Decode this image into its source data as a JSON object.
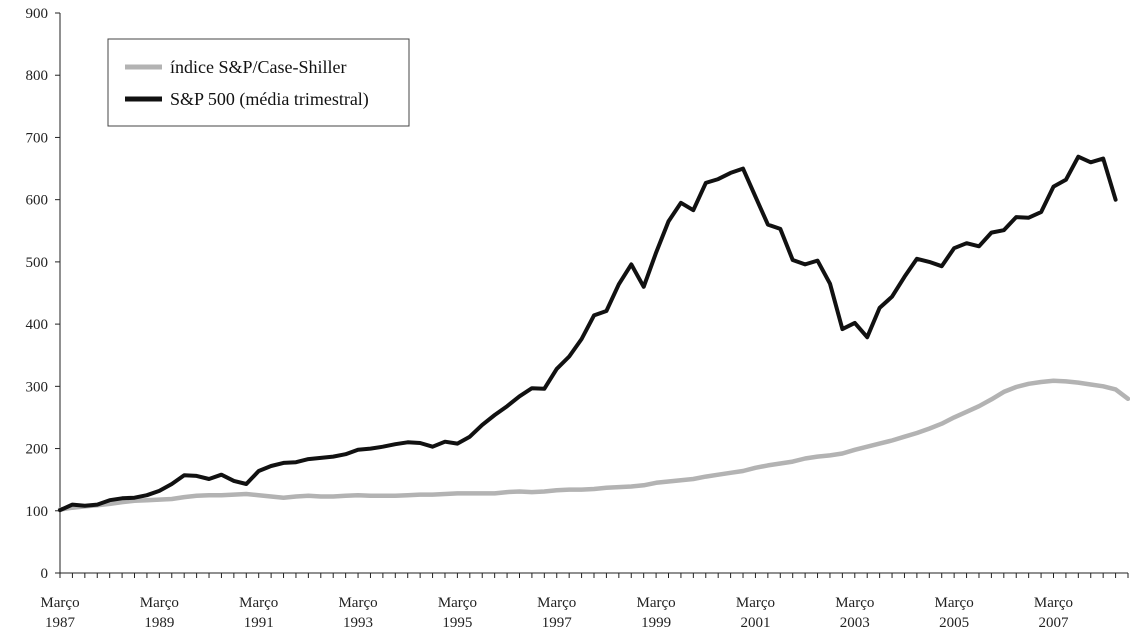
{
  "chart_data": {
    "type": "line",
    "title": "",
    "xlabel": "",
    "ylabel": "",
    "ylim": [
      0,
      900
    ],
    "y_ticks": [
      "0",
      "100",
      "200",
      "300",
      "400",
      "500",
      "600",
      "700",
      "800",
      "900"
    ],
    "x_ticks": [
      {
        "line1": "Março",
        "line2": "1987"
      },
      {
        "line1": "Março",
        "line2": "1989"
      },
      {
        "line1": "Março",
        "line2": "1991"
      },
      {
        "line1": "Março",
        "line2": "1993"
      },
      {
        "line1": "Março",
        "line2": "1995"
      },
      {
        "line1": "Março",
        "line2": "1997"
      },
      {
        "line1": "Março",
        "line2": "1999"
      },
      {
        "line1": "Março",
        "line2": "2001"
      },
      {
        "line1": "Março",
        "line2": "2003"
      },
      {
        "line1": "Março",
        "line2": "2005"
      },
      {
        "line1": "Março",
        "line2": "2007"
      }
    ],
    "grid": false,
    "legend_position": "top-left",
    "series": [
      {
        "name": "índice S&P/Case-Shiller",
        "color": "#b3b3b3",
        "values": [
          102,
          105,
          107,
          109,
          111,
          114,
          116,
          117,
          118,
          119,
          122,
          124,
          125,
          125,
          126,
          127,
          125,
          123,
          121,
          123,
          124,
          123,
          123,
          124,
          125,
          124,
          124,
          124,
          125,
          126,
          126,
          127,
          128,
          128,
          128,
          128,
          130,
          131,
          130,
          131,
          133,
          134,
          134,
          135,
          137,
          138,
          139,
          141,
          145,
          147,
          149,
          151,
          155,
          158,
          161,
          164,
          169,
          173,
          176,
          179,
          184,
          187,
          189,
          192,
          198,
          203,
          208,
          213,
          219,
          225,
          232,
          240,
          250,
          259,
          268,
          279,
          291,
          299,
          304,
          307,
          309,
          308,
          306,
          303,
          300,
          295,
          280
        ]
      },
      {
        "name": "S&P 500 (média trimestral)",
        "color": "#111111",
        "values": [
          101,
          110,
          108,
          110,
          117,
          120,
          121,
          125,
          132,
          143,
          157,
          156,
          151,
          158,
          148,
          143,
          164,
          172,
          177,
          178,
          183,
          185,
          187,
          191,
          198,
          200,
          203,
          207,
          210,
          209,
          203,
          211,
          208,
          219,
          238,
          254,
          268,
          284,
          297,
          296,
          328,
          348,
          376,
          414,
          421,
          464,
          496,
          460,
          515,
          565,
          595,
          583,
          627,
          633,
          643,
          650,
          605,
          560,
          553,
          503,
          496,
          502,
          465,
          392,
          402,
          379,
          426,
          444,
          476,
          505,
          500,
          493,
          522,
          530,
          525,
          547,
          551,
          572,
          571,
          580,
          621,
          632,
          669,
          660,
          666,
          600
        ]
      }
    ]
  }
}
